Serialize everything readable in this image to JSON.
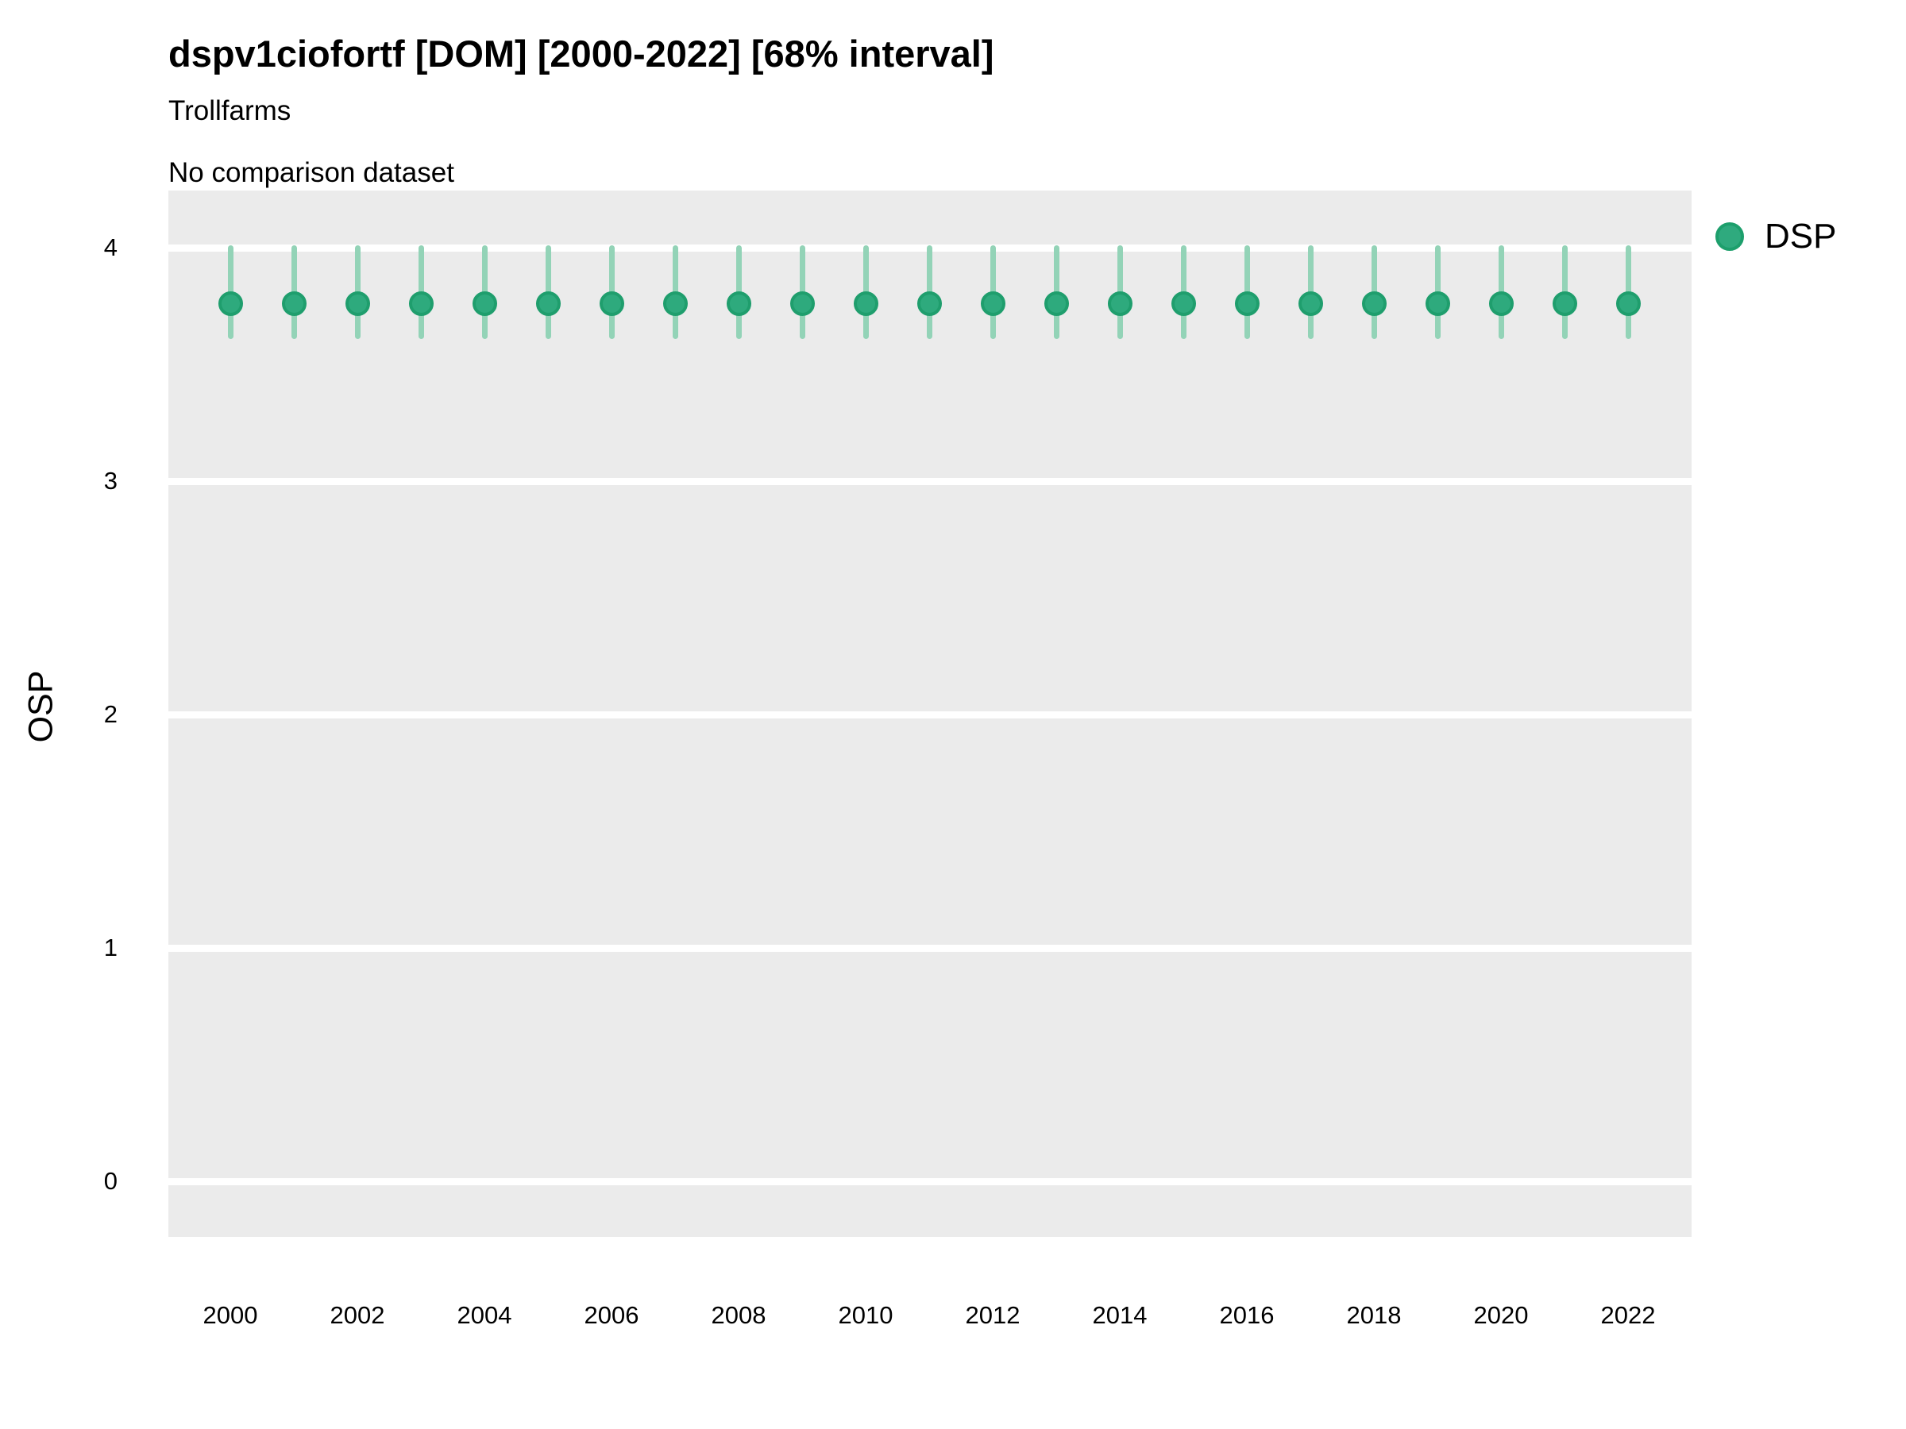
{
  "header": {
    "title": "dspv1ciofortf [DOM] [2000-2022] [68% interval]",
    "subtitle": "Trollfarms",
    "comparison_note": "No comparison dataset"
  },
  "legend": {
    "position": "top-right",
    "items": [
      {
        "label": "DSP",
        "swatch_color": "#2FAA7E",
        "swatch_stroke": "#1D9F6C"
      }
    ]
  },
  "chart_data": {
    "type": "scatter",
    "subtype": "pointrange",
    "title": "dspv1ciofortf [DOM] [2000-2022] [68% interval]",
    "subtitle": "Trollfarms",
    "note": "No comparison dataset",
    "xlabel": "",
    "ylabel": "OSP",
    "interval_label": "68% interval",
    "ylim": [
      -0.24,
      4.25
    ],
    "yticks": [
      0,
      1,
      2,
      3,
      4
    ],
    "xticks": [
      2000,
      2002,
      2004,
      2006,
      2008,
      2010,
      2012,
      2014,
      2016,
      2018,
      2020,
      2022
    ],
    "grid": "horizontal-major-only",
    "panel_bg": "#EBEBEB",
    "gridline_color": "#FFFFFF",
    "text_color": "#000000",
    "series": [
      {
        "name": "DSP",
        "point_color": "#2EAA7D",
        "point_stroke": "#1F9E6D",
        "interval_color": "#93D3B7",
        "points": [
          {
            "x": 2000,
            "y": 3.76,
            "lo": 3.62,
            "hi": 4.0
          },
          {
            "x": 2001,
            "y": 3.76,
            "lo": 3.62,
            "hi": 4.0
          },
          {
            "x": 2002,
            "y": 3.76,
            "lo": 3.62,
            "hi": 4.0
          },
          {
            "x": 2003,
            "y": 3.76,
            "lo": 3.62,
            "hi": 4.0
          },
          {
            "x": 2004,
            "y": 3.76,
            "lo": 3.62,
            "hi": 4.0
          },
          {
            "x": 2005,
            "y": 3.76,
            "lo": 3.62,
            "hi": 4.0
          },
          {
            "x": 2006,
            "y": 3.76,
            "lo": 3.62,
            "hi": 4.0
          },
          {
            "x": 2007,
            "y": 3.76,
            "lo": 3.62,
            "hi": 4.0
          },
          {
            "x": 2008,
            "y": 3.76,
            "lo": 3.62,
            "hi": 4.0
          },
          {
            "x": 2009,
            "y": 3.76,
            "lo": 3.62,
            "hi": 4.0
          },
          {
            "x": 2010,
            "y": 3.76,
            "lo": 3.62,
            "hi": 4.0
          },
          {
            "x": 2011,
            "y": 3.76,
            "lo": 3.62,
            "hi": 4.0
          },
          {
            "x": 2012,
            "y": 3.76,
            "lo": 3.62,
            "hi": 4.0
          },
          {
            "x": 2013,
            "y": 3.76,
            "lo": 3.62,
            "hi": 4.0
          },
          {
            "x": 2014,
            "y": 3.76,
            "lo": 3.62,
            "hi": 4.0
          },
          {
            "x": 2015,
            "y": 3.76,
            "lo": 3.62,
            "hi": 4.0
          },
          {
            "x": 2016,
            "y": 3.76,
            "lo": 3.62,
            "hi": 4.0
          },
          {
            "x": 2017,
            "y": 3.76,
            "lo": 3.62,
            "hi": 4.0
          },
          {
            "x": 2018,
            "y": 3.76,
            "lo": 3.62,
            "hi": 4.0
          },
          {
            "x": 2019,
            "y": 3.76,
            "lo": 3.62,
            "hi": 4.0
          },
          {
            "x": 2020,
            "y": 3.76,
            "lo": 3.62,
            "hi": 4.0
          },
          {
            "x": 2021,
            "y": 3.76,
            "lo": 3.62,
            "hi": 4.0
          },
          {
            "x": 2022,
            "y": 3.76,
            "lo": 3.62,
            "hi": 4.0
          }
        ]
      }
    ]
  }
}
